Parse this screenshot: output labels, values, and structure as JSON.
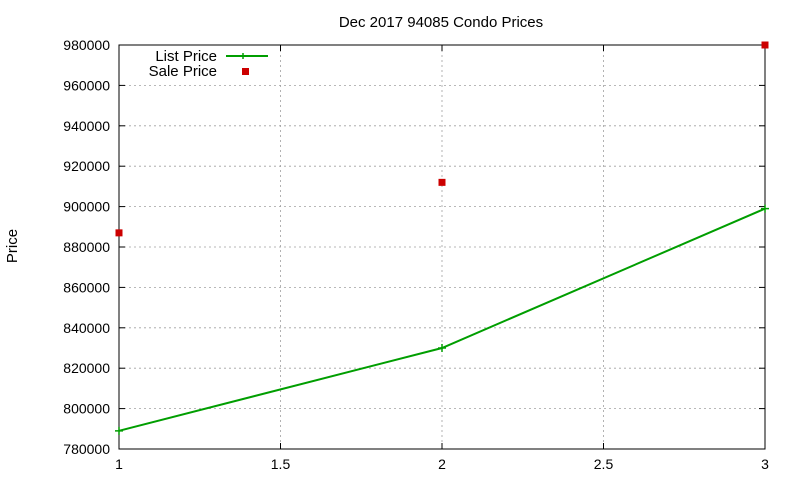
{
  "chart_data": {
    "type": "line",
    "title": "Dec 2017 94085 Condo Prices",
    "xlabel": "",
    "ylabel": "Price",
    "xlim": [
      1,
      3
    ],
    "ylim": [
      780000,
      980000
    ],
    "x_ticks": [
      "1",
      "1.5",
      "2",
      "2.5",
      "3"
    ],
    "y_ticks": [
      "780000",
      "800000",
      "820000",
      "840000",
      "860000",
      "880000",
      "900000",
      "920000",
      "940000",
      "960000",
      "980000"
    ],
    "grid": true,
    "legend_position": "top-left",
    "series": [
      {
        "name": "List Price",
        "style": "line-with-plus-markers",
        "color": "#009e00",
        "x": [
          1,
          2,
          3
        ],
        "y": [
          789000,
          830000,
          899000
        ]
      },
      {
        "name": "Sale Price",
        "style": "square-points",
        "color": "#cc0000",
        "x": [
          1,
          2,
          3
        ],
        "y": [
          887000,
          912000,
          980000
        ]
      }
    ]
  }
}
